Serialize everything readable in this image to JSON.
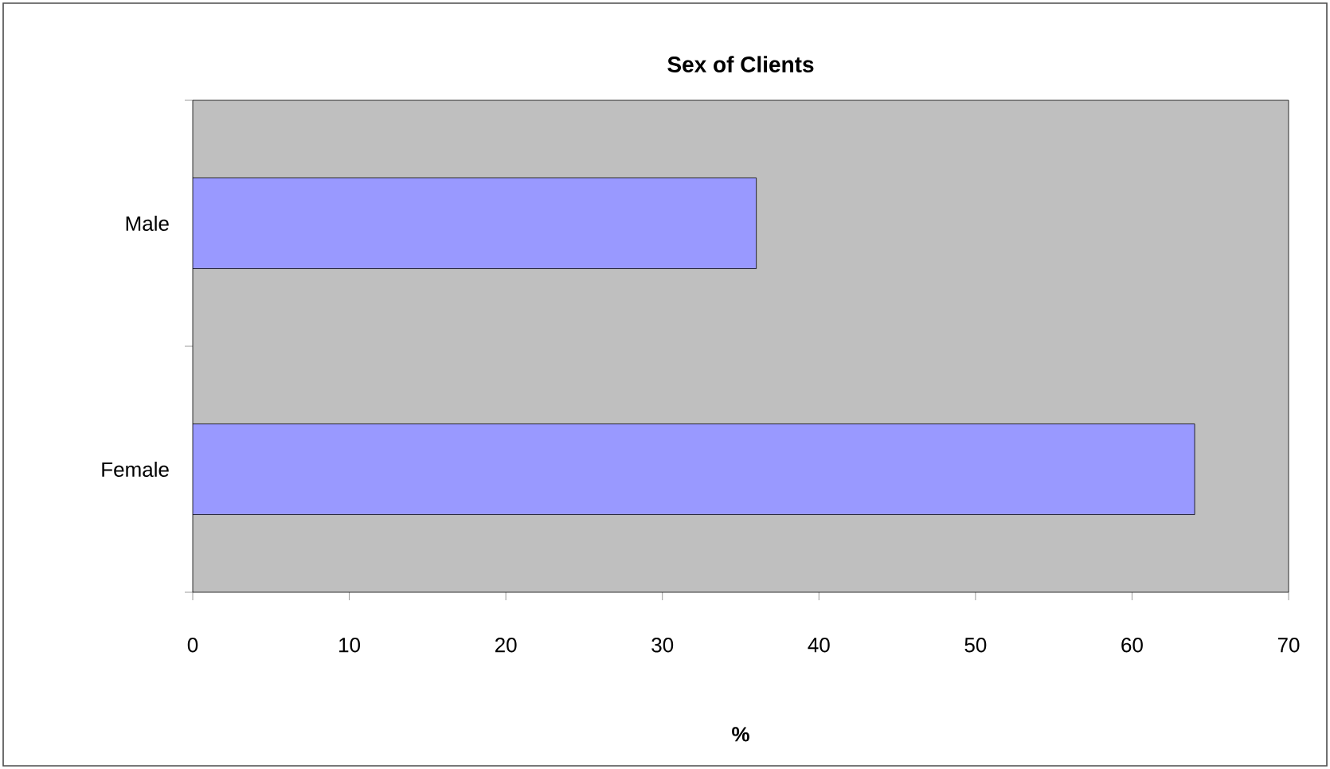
{
  "chart_data": {
    "type": "bar",
    "orientation": "horizontal",
    "title": "Sex of Clients",
    "xlabel": "%",
    "categories": [
      "Male",
      "Female"
    ],
    "values": [
      36,
      64
    ],
    "color": "#9999ff",
    "xlim": [
      0,
      70
    ],
    "xticks": [
      0,
      10,
      20,
      30,
      40,
      50,
      60,
      70
    ]
  }
}
